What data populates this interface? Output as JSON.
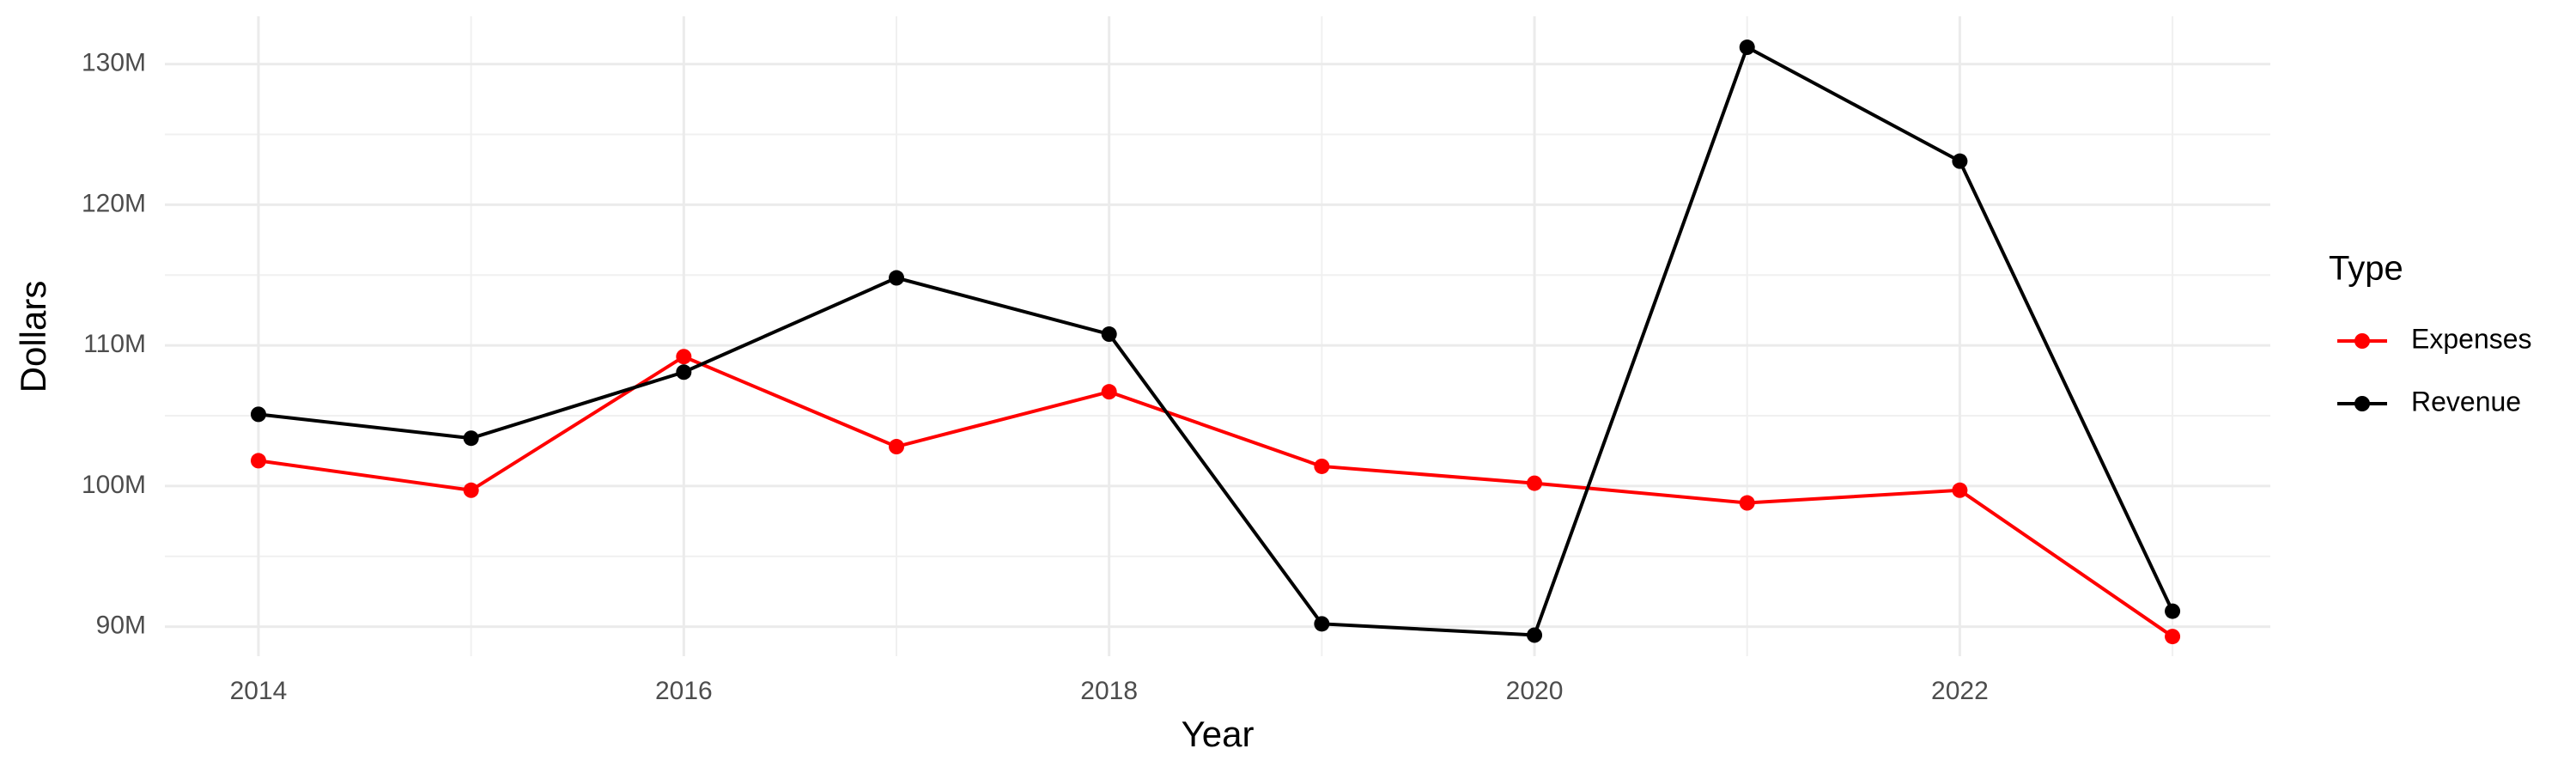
{
  "chart_data": {
    "type": "line",
    "x_label": "Year",
    "y_label": "Dollars",
    "legend_title": "Type",
    "x": [
      2014,
      2015,
      2016,
      2017,
      2018,
      2019,
      2020,
      2021,
      2022,
      2023
    ],
    "series": [
      {
        "name": "Expenses",
        "color": "#ff0000",
        "values": [
          101800000,
          99700000,
          109200000,
          102800000,
          106700000,
          101400000,
          100200000,
          98800000,
          99700000,
          89300000
        ]
      },
      {
        "name": "Revenue",
        "color": "#000000",
        "values": [
          105100000,
          103400000,
          108100000,
          114800000,
          110800000,
          90200000,
          89400000,
          131200000,
          123100000,
          91100000
        ]
      }
    ],
    "xlim": [
      2013.56,
      2023.46
    ],
    "xticks": [
      2014,
      2016,
      2018,
      2020,
      2022
    ],
    "ylim": [
      87900000,
      133400000
    ],
    "yticks": [
      {
        "value": 90000000,
        "label": "90M"
      },
      {
        "value": 100000000,
        "label": "100M"
      },
      {
        "value": 110000000,
        "label": "110M"
      },
      {
        "value": 120000000,
        "label": "120M"
      },
      {
        "value": 130000000,
        "label": "130M"
      }
    ],
    "grid": true,
    "legend_position": "right"
  }
}
